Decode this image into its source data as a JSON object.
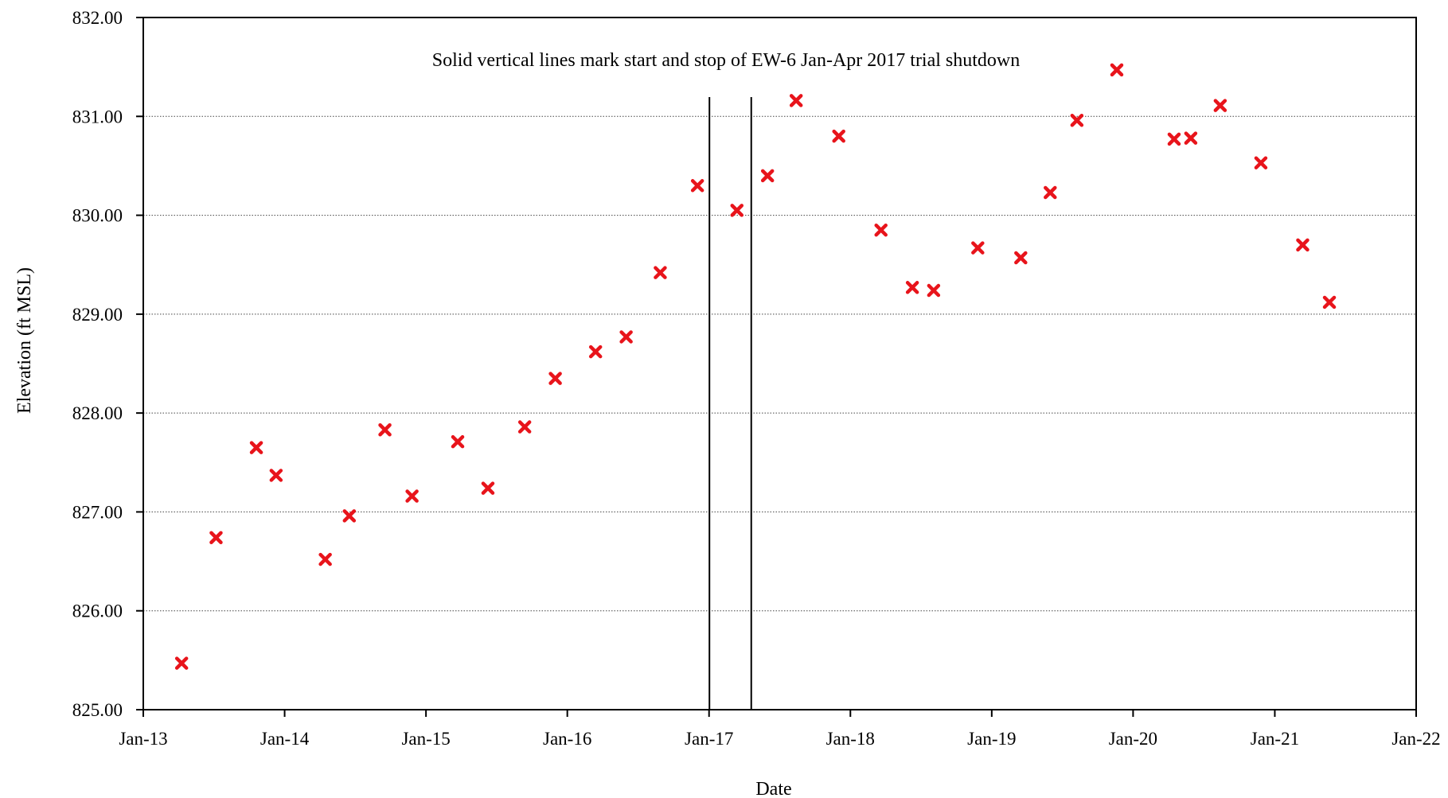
{
  "chart_data": {
    "type": "scatter",
    "xlabel": "Date",
    "ylabel": "Elevation (ft MSL)",
    "annotation": "Solid vertical lines mark start and stop of EW-6 Jan-Apr 2017 trial shutdown",
    "xlim": [
      "2013-01-01",
      "2022-01-01"
    ],
    "ylim": [
      825.0,
      832.0
    ],
    "grid": "horizontal dotted",
    "x_ticks": [
      {
        "date": "2013-01-01",
        "label": "Jan-13"
      },
      {
        "date": "2014-01-01",
        "label": "Jan-14"
      },
      {
        "date": "2015-01-01",
        "label": "Jan-15"
      },
      {
        "date": "2016-01-01",
        "label": "Jan-16"
      },
      {
        "date": "2017-01-01",
        "label": "Jan-17"
      },
      {
        "date": "2018-01-01",
        "label": "Jan-18"
      },
      {
        "date": "2019-01-01",
        "label": "Jan-19"
      },
      {
        "date": "2020-01-01",
        "label": "Jan-20"
      },
      {
        "date": "2021-01-01",
        "label": "Jan-21"
      },
      {
        "date": "2022-01-01",
        "label": "Jan-22"
      }
    ],
    "y_ticks": [
      {
        "value": 825,
        "label": "825.00"
      },
      {
        "value": 826,
        "label": "826.00"
      },
      {
        "value": 827,
        "label": "827.00"
      },
      {
        "value": 828,
        "label": "828.00"
      },
      {
        "value": 829,
        "label": "829.00"
      },
      {
        "value": 830,
        "label": "830.00"
      },
      {
        "value": 831,
        "label": "831.00"
      },
      {
        "value": 832,
        "label": "832.00"
      }
    ],
    "vertical_lines": [
      "2017-01-02",
      "2017-04-20"
    ],
    "marker": {
      "shape": "x",
      "color": "#e8141b"
    },
    "points": [
      {
        "x": "2013-04-10",
        "y": 825.47
      },
      {
        "x": "2013-07-08",
        "y": 826.74
      },
      {
        "x": "2013-10-20",
        "y": 827.65
      },
      {
        "x": "2013-12-10",
        "y": 827.37
      },
      {
        "x": "2014-04-16",
        "y": 826.52
      },
      {
        "x": "2014-06-17",
        "y": 826.96
      },
      {
        "x": "2014-09-17",
        "y": 827.83
      },
      {
        "x": "2014-11-26",
        "y": 827.16
      },
      {
        "x": "2015-03-24",
        "y": 827.71
      },
      {
        "x": "2015-06-10",
        "y": 827.24
      },
      {
        "x": "2015-09-13",
        "y": 827.86
      },
      {
        "x": "2015-12-01",
        "y": 828.35
      },
      {
        "x": "2016-03-14",
        "y": 828.62
      },
      {
        "x": "2016-06-01",
        "y": 828.77
      },
      {
        "x": "2016-08-28",
        "y": 829.42
      },
      {
        "x": "2016-12-02",
        "y": 830.3
      },
      {
        "x": "2017-03-14",
        "y": 830.05
      },
      {
        "x": "2017-06-01",
        "y": 830.4
      },
      {
        "x": "2017-08-14",
        "y": 831.16
      },
      {
        "x": "2017-12-02",
        "y": 830.8
      },
      {
        "x": "2018-03-21",
        "y": 829.85
      },
      {
        "x": "2018-06-10",
        "y": 829.27
      },
      {
        "x": "2018-08-04",
        "y": 829.24
      },
      {
        "x": "2018-11-26",
        "y": 829.67
      },
      {
        "x": "2019-03-17",
        "y": 829.57
      },
      {
        "x": "2019-06-01",
        "y": 830.23
      },
      {
        "x": "2019-08-09",
        "y": 830.96
      },
      {
        "x": "2019-11-20",
        "y": 831.47
      },
      {
        "x": "2020-04-16",
        "y": 830.77
      },
      {
        "x": "2020-05-29",
        "y": 830.78
      },
      {
        "x": "2020-08-13",
        "y": 831.11
      },
      {
        "x": "2020-11-26",
        "y": 830.53
      },
      {
        "x": "2021-03-14",
        "y": 829.7
      },
      {
        "x": "2021-05-22",
        "y": 829.12
      }
    ]
  }
}
